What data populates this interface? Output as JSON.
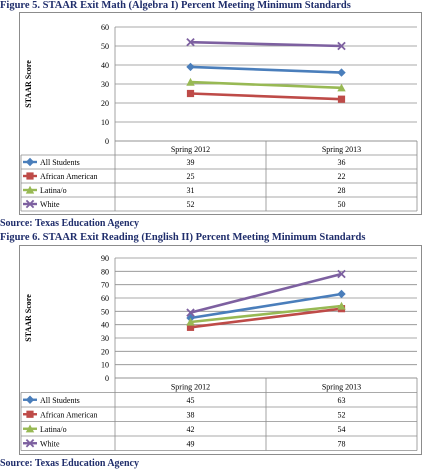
{
  "chart_data": [
    {
      "type": "line",
      "title": "Figure 5. STAAR Exit Math (Algebra I) Percent Meeting Minimum Standards",
      "source": "Source: Texas Education Agency",
      "ylabel": "STAAR Score",
      "ylim": [
        0,
        60
      ],
      "yticks": [
        0,
        10,
        20,
        30,
        40,
        50,
        60
      ],
      "categories": [
        "Spring 2012",
        "Spring 2013"
      ],
      "grid": true,
      "legend": "data-table-bottom",
      "series": [
        {
          "name": "All Students",
          "values": [
            39,
            36
          ],
          "color": "#4a7ebb",
          "marker": "diamond"
        },
        {
          "name": "African American",
          "values": [
            25,
            22
          ],
          "color": "#be4b48",
          "marker": "square"
        },
        {
          "name": "Latina/o",
          "values": [
            31,
            28
          ],
          "color": "#98b954",
          "marker": "triangle"
        },
        {
          "name": "White",
          "values": [
            52,
            50
          ],
          "color": "#7d60a0",
          "marker": "x"
        }
      ]
    },
    {
      "type": "line",
      "title": "Figure 6. STAAR Exit Reading (English II) Percent Meeting Minimum Standards",
      "source": "Source: Texas Education Agency",
      "ylabel": "STAAR Score",
      "ylim": [
        0,
        90
      ],
      "yticks": [
        0,
        10,
        20,
        30,
        40,
        50,
        60,
        70,
        80,
        90
      ],
      "categories": [
        "Spring 2012",
        "Spring 2013"
      ],
      "grid": true,
      "legend": "data-table-bottom",
      "series": [
        {
          "name": "All Students",
          "values": [
            45,
            63
          ],
          "color": "#4a7ebb",
          "marker": "diamond"
        },
        {
          "name": "African American",
          "values": [
            38,
            52
          ],
          "color": "#be4b48",
          "marker": "square"
        },
        {
          "name": "Latina/o",
          "values": [
            42,
            54
          ],
          "color": "#98b954",
          "marker": "triangle"
        },
        {
          "name": "White",
          "values": [
            49,
            78
          ],
          "color": "#7d60a0",
          "marker": "x"
        }
      ]
    }
  ]
}
